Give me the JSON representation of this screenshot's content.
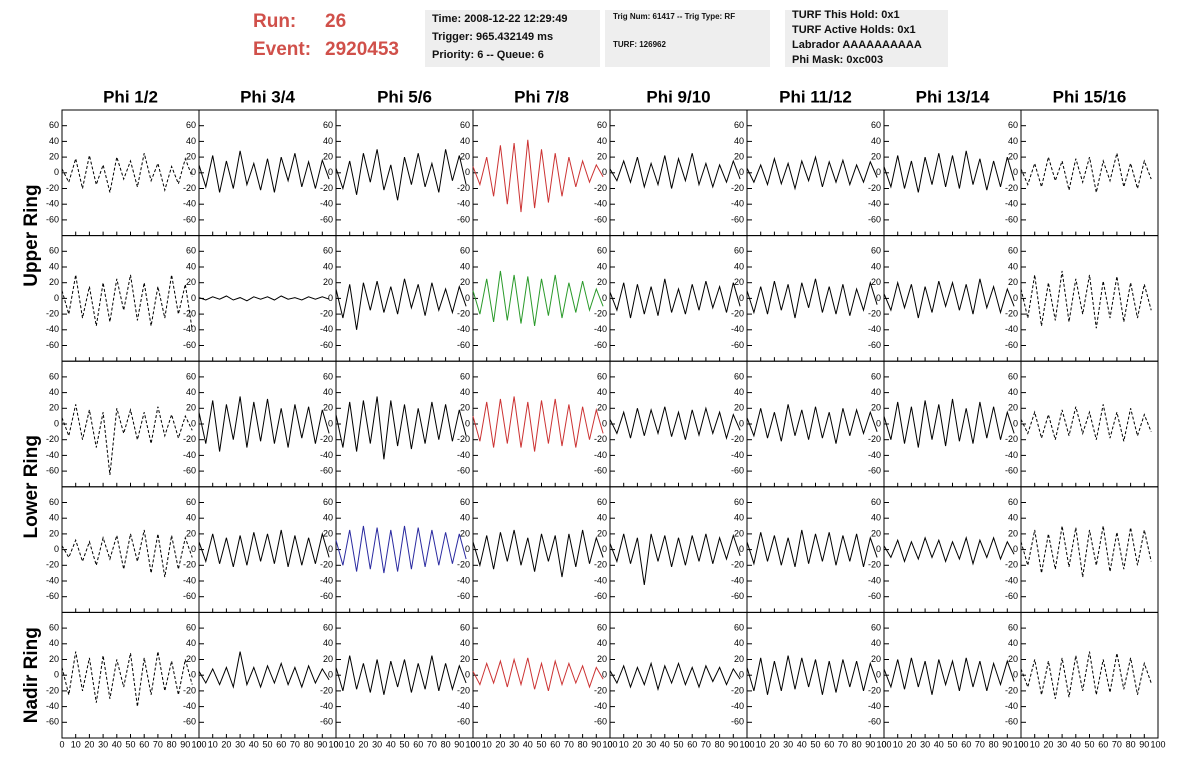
{
  "header": {
    "run_label": "Run:",
    "run": "26",
    "event_label": "Event:",
    "event": "2920453"
  },
  "info": [
    [
      "Time: 2008-12-22 12:29:49",
      "Trigger: 965.432149 ms",
      "Priority: 6 -- Queue: 6"
    ],
    [
      "Trig Num: 61417 -- Trig Type: RF",
      "TURF: 126962"
    ],
    [
      "TURF This Hold: 0x1",
      "TURF Active Holds: 0x1",
      "Labrador AAAAAAAAAA",
      "Phi Mask: 0xc003"
    ]
  ],
  "columns": [
    "Phi 1/2",
    "Phi 3/4",
    "Phi 5/6",
    "Phi 7/8",
    "Phi 9/10",
    "Phi 11/12",
    "Phi 13/14",
    "Phi 15/16"
  ],
  "rows": [
    "Upper Ring",
    "Lower Ring",
    "Nadir Ring"
  ],
  "chart_data": {
    "type": "line",
    "xlim": [
      0,
      100
    ],
    "ylim": [
      -80,
      80
    ],
    "yticks": [
      -60,
      -40,
      -20,
      0,
      20,
      40,
      60
    ],
    "xticks": [
      0,
      10,
      20,
      30,
      40,
      50,
      60,
      70,
      80,
      90,
      100
    ],
    "x": [
      0,
      5,
      10,
      15,
      20,
      25,
      30,
      35,
      40,
      45,
      50,
      55,
      60,
      65,
      70,
      75,
      80,
      85,
      90,
      95
    ],
    "panels": [
      [
        {
          "color": "#000000",
          "dashed": true,
          "values": [
            5,
            -12,
            18,
            -20,
            22,
            -15,
            10,
            -25,
            20,
            -8,
            15,
            -18,
            25,
            -10,
            12,
            -22,
            8,
            -14,
            18,
            -5
          ]
        },
        {
          "color": "#000000",
          "dashed": false,
          "values": [
            10,
            -18,
            22,
            -25,
            15,
            -20,
            28,
            -15,
            12,
            -22,
            18,
            -25,
            20,
            -10,
            25,
            -18,
            14,
            -20,
            16,
            -8
          ]
        },
        {
          "color": "#000000",
          "dashed": false,
          "values": [
            6,
            -20,
            15,
            -28,
            25,
            -12,
            30,
            -22,
            10,
            -35,
            20,
            -15,
            25,
            -18,
            12,
            -25,
            30,
            -10,
            22,
            -15
          ]
        },
        {
          "color": "#cc3333",
          "dashed": false,
          "values": [
            8,
            -15,
            20,
            -30,
            35,
            -40,
            38,
            -50,
            42,
            -45,
            30,
            -38,
            25,
            -30,
            20,
            -18,
            15,
            -12,
            10,
            -5
          ]
        },
        {
          "color": "#000000",
          "dashed": false,
          "values": [
            5,
            -10,
            15,
            -12,
            20,
            -18,
            12,
            -15,
            22,
            -20,
            18,
            -10,
            25,
            -15,
            12,
            -18,
            10,
            -12,
            15,
            -8
          ]
        },
        {
          "color": "#000000",
          "dashed": false,
          "values": [
            6,
            -12,
            10,
            -15,
            18,
            -14,
            12,
            -20,
            15,
            -10,
            20,
            -18,
            14,
            -12,
            16,
            -15,
            10,
            -12,
            14,
            -6
          ]
        },
        {
          "color": "#000000",
          "dashed": false,
          "values": [
            8,
            -18,
            22,
            -20,
            15,
            -25,
            20,
            -15,
            25,
            -18,
            22,
            -20,
            28,
            -15,
            18,
            -22,
            15,
            -18,
            20,
            -10
          ]
        },
        {
          "color": "#000000",
          "dashed": true,
          "values": [
            5,
            -15,
            12,
            -18,
            20,
            -10,
            15,
            -22,
            18,
            -12,
            20,
            -25,
            15,
            -10,
            25,
            -18,
            12,
            -20,
            15,
            -8
          ]
        }
      ],
      [
        {
          "color": "#000000",
          "dashed": true,
          "values": [
            10,
            -20,
            30,
            -25,
            15,
            -35,
            20,
            -30,
            25,
            -15,
            30,
            -28,
            20,
            -35,
            15,
            -25,
            30,
            -20,
            18,
            -40
          ]
        },
        {
          "color": "#000000",
          "dashed": false,
          "values": [
            1,
            -2,
            2,
            -1,
            3,
            -2,
            1,
            -3,
            2,
            -1,
            2,
            -2,
            3,
            -1,
            1,
            -2,
            2,
            -1,
            2,
            -1
          ]
        },
        {
          "color": "#000000",
          "dashed": false,
          "values": [
            12,
            -25,
            18,
            -40,
            20,
            -15,
            22,
            -18,
            15,
            -20,
            25,
            -12,
            18,
            -22,
            20,
            -15,
            12,
            -18,
            15,
            -10
          ]
        },
        {
          "color": "#2a9a2a",
          "dashed": false,
          "values": [
            10,
            -20,
            25,
            -30,
            35,
            -28,
            30,
            -32,
            28,
            -35,
            25,
            -22,
            30,
            -25,
            20,
            -18,
            22,
            -15,
            12,
            -10
          ]
        },
        {
          "color": "#000000",
          "dashed": false,
          "values": [
            8,
            -15,
            20,
            -25,
            18,
            -20,
            15,
            -22,
            25,
            -18,
            12,
            -20,
            18,
            -15,
            22,
            -12,
            15,
            -18,
            20,
            -10
          ]
        },
        {
          "color": "#000000",
          "dashed": false,
          "values": [
            10,
            -18,
            15,
            -20,
            22,
            -15,
            18,
            -25,
            20,
            -12,
            25,
            -18,
            15,
            -20,
            18,
            -22,
            12,
            -15,
            20,
            -8
          ]
        },
        {
          "color": "#000000",
          "dashed": false,
          "values": [
            6,
            -15,
            20,
            -12,
            18,
            -25,
            15,
            -18,
            22,
            -10,
            20,
            -15,
            18,
            -20,
            25,
            -12,
            15,
            -18,
            12,
            -10
          ]
        },
        {
          "color": "#000000",
          "dashed": true,
          "values": [
            12,
            -25,
            30,
            -35,
            20,
            -28,
            35,
            -30,
            25,
            -20,
            30,
            -38,
            22,
            -25,
            28,
            -30,
            20,
            -25,
            18,
            -15
          ]
        }
      ],
      [
        {
          "color": "#000000",
          "dashed": true,
          "values": [
            8,
            -15,
            25,
            -20,
            18,
            -30,
            15,
            -65,
            20,
            -12,
            18,
            -20,
            15,
            -25,
            22,
            -15,
            12,
            -18,
            10,
            -8
          ]
        },
        {
          "color": "#000000",
          "dashed": false,
          "values": [
            15,
            -25,
            30,
            -35,
            25,
            -20,
            35,
            -30,
            28,
            -22,
            32,
            -25,
            20,
            -30,
            25,
            -18,
            22,
            -25,
            18,
            -12
          ]
        },
        {
          "color": "#000000",
          "dashed": false,
          "values": [
            12,
            -30,
            28,
            -35,
            30,
            -25,
            35,
            -45,
            30,
            -28,
            25,
            -32,
            20,
            -25,
            28,
            -20,
            25,
            -22,
            18,
            -15
          ]
        },
        {
          "color": "#cc3333",
          "dashed": false,
          "values": [
            10,
            -22,
            28,
            -30,
            32,
            -25,
            35,
            -30,
            28,
            -35,
            30,
            -25,
            32,
            -28,
            25,
            -30,
            22,
            -20,
            18,
            -12
          ]
        },
        {
          "color": "#000000",
          "dashed": false,
          "values": [
            6,
            -12,
            15,
            -18,
            20,
            -15,
            18,
            -12,
            22,
            -16,
            15,
            -20,
            18,
            -14,
            20,
            -12,
            15,
            -18,
            12,
            -8
          ]
        },
        {
          "color": "#000000",
          "dashed": false,
          "values": [
            8,
            -15,
            20,
            -18,
            15,
            -22,
            25,
            -15,
            18,
            -20,
            22,
            -18,
            15,
            -25,
            20,
            -15,
            18,
            -12,
            15,
            -10
          ]
        },
        {
          "color": "#000000",
          "dashed": false,
          "values": [
            10,
            -20,
            28,
            -25,
            22,
            -30,
            30,
            -20,
            25,
            -28,
            32,
            -22,
            20,
            -25,
            28,
            -18,
            22,
            -20,
            15,
            -12
          ]
        },
        {
          "color": "#000000",
          "dashed": true,
          "values": [
            6,
            -12,
            15,
            -18,
            12,
            -20,
            18,
            -15,
            22,
            -12,
            15,
            -20,
            25,
            -18,
            15,
            -22,
            20,
            -15,
            12,
            -10
          ]
        }
      ],
      [
        {
          "color": "#000000",
          "dashed": true,
          "values": [
            5,
            -10,
            12,
            -15,
            10,
            -20,
            15,
            -12,
            18,
            -25,
            20,
            -15,
            25,
            -30,
            20,
            -35,
            18,
            -25,
            15,
            -10
          ]
        },
        {
          "color": "#000000",
          "dashed": false,
          "values": [
            10,
            -15,
            20,
            -18,
            15,
            -22,
            18,
            -20,
            22,
            -15,
            20,
            -18,
            25,
            -22,
            18,
            -20,
            15,
            -18,
            20,
            -10
          ]
        },
        {
          "color": "#2a2aa0",
          "dashed": false,
          "values": [
            12,
            -20,
            25,
            -28,
            30,
            -25,
            28,
            -30,
            25,
            -28,
            30,
            -25,
            28,
            -22,
            25,
            -20,
            22,
            -18,
            20,
            -12
          ]
        },
        {
          "color": "#000000",
          "dashed": false,
          "values": [
            10,
            -20,
            18,
            -25,
            22,
            -15,
            25,
            -20,
            15,
            -28,
            20,
            -15,
            18,
            -35,
            20,
            -22,
            25,
            -18,
            15,
            -10
          ]
        },
        {
          "color": "#000000",
          "dashed": false,
          "values": [
            8,
            -15,
            20,
            -18,
            15,
            -45,
            20,
            -15,
            18,
            -22,
            15,
            -20,
            18,
            -15,
            20,
            -18,
            15,
            -12,
            18,
            -8
          ]
        },
        {
          "color": "#000000",
          "dashed": false,
          "values": [
            10,
            -18,
            22,
            -15,
            18,
            -20,
            15,
            -22,
            25,
            -18,
            20,
            -15,
            22,
            -20,
            18,
            -15,
            20,
            -22,
            15,
            -10
          ]
        },
        {
          "color": "#000000",
          "dashed": false,
          "values": [
            5,
            -10,
            12,
            -15,
            10,
            -12,
            15,
            -10,
            12,
            -15,
            10,
            -12,
            15,
            -18,
            12,
            -10,
            15,
            -12,
            10,
            -6
          ]
        },
        {
          "color": "#000000",
          "dashed": true,
          "values": [
            10,
            -20,
            25,
            -30,
            20,
            -25,
            30,
            -22,
            28,
            -35,
            25,
            -20,
            30,
            -28,
            22,
            -25,
            28,
            -20,
            25,
            -15
          ]
        }
      ],
      [
        {
          "color": "#000000",
          "dashed": true,
          "values": [
            10,
            -25,
            30,
            -20,
            22,
            -35,
            25,
            -30,
            20,
            -15,
            28,
            -40,
            22,
            -25,
            30,
            -20,
            18,
            -25,
            20,
            -12
          ]
        },
        {
          "color": "#000000",
          "dashed": false,
          "values": [
            5,
            -10,
            8,
            -12,
            10,
            -15,
            30,
            -12,
            10,
            -15,
            12,
            -10,
            15,
            -12,
            10,
            -15,
            12,
            -10,
            8,
            -6
          ]
        },
        {
          "color": "#000000",
          "dashed": false,
          "values": [
            10,
            -20,
            25,
            -18,
            15,
            -22,
            20,
            -25,
            18,
            -15,
            20,
            -22,
            15,
            -18,
            25,
            -20,
            15,
            -18,
            12,
            -10
          ]
        },
        {
          "color": "#cc3333",
          "dashed": false,
          "values": [
            5,
            -12,
            15,
            -10,
            18,
            -15,
            20,
            -12,
            22,
            -18,
            15,
            -20,
            18,
            -12,
            15,
            -10,
            12,
            -15,
            10,
            -5
          ]
        },
        {
          "color": "#000000",
          "dashed": false,
          "values": [
            6,
            -10,
            12,
            -15,
            10,
            -12,
            15,
            -18,
            12,
            -10,
            15,
            -12,
            10,
            -15,
            12,
            -8,
            10,
            -12,
            8,
            -5
          ]
        },
        {
          "color": "#000000",
          "dashed": false,
          "values": [
            10,
            -20,
            22,
            -25,
            18,
            -20,
            25,
            -18,
            22,
            -15,
            20,
            -25,
            18,
            -22,
            20,
            -15,
            18,
            -20,
            15,
            -10
          ]
        },
        {
          "color": "#000000",
          "dashed": false,
          "values": [
            8,
            -15,
            20,
            -18,
            22,
            -15,
            18,
            -25,
            20,
            -12,
            18,
            -20,
            22,
            -15,
            18,
            -20,
            15,
            -12,
            18,
            -8
          ]
        },
        {
          "color": "#000000",
          "dashed": true,
          "values": [
            8,
            -15,
            20,
            -25,
            18,
            -30,
            22,
            -28,
            25,
            -20,
            30,
            -25,
            20,
            -22,
            28,
            -18,
            22,
            -25,
            15,
            -10
          ]
        }
      ]
    ]
  }
}
